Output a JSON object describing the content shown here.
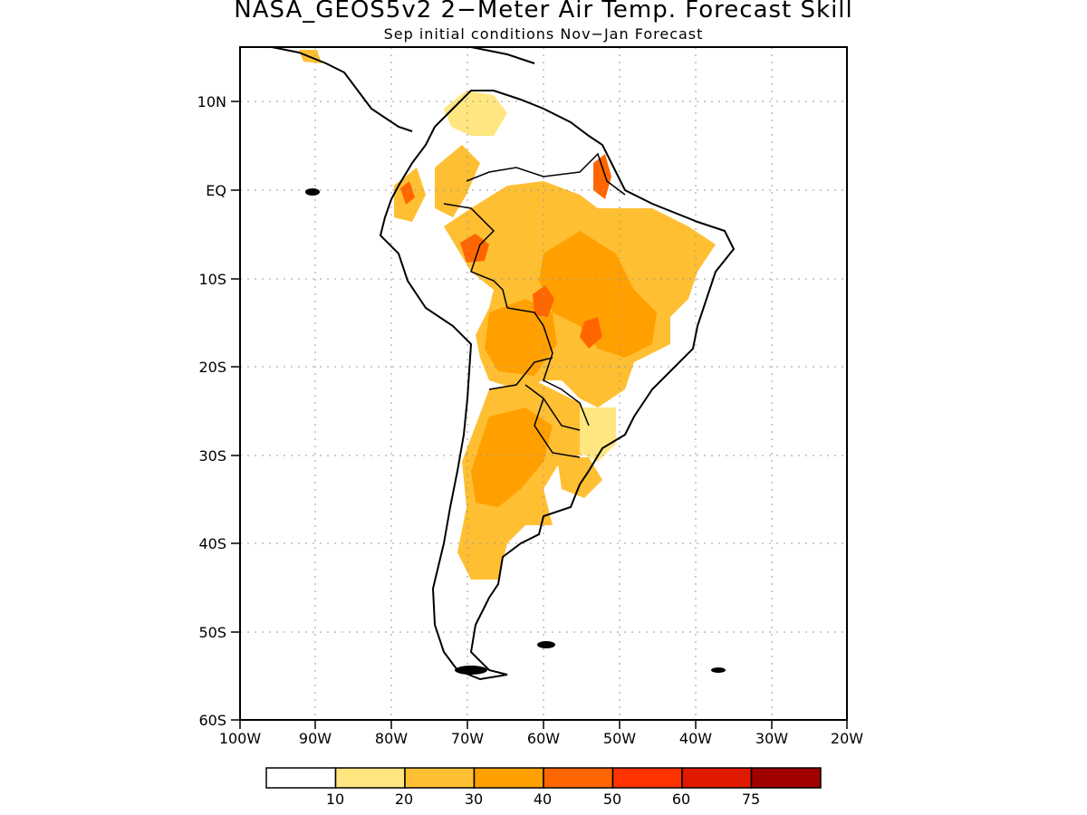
{
  "title": "NASA_GEOS5v2 2−Meter Air Temp. Forecast Skill",
  "subtitle": "Sep initial conditions  Nov−Jan Forecast",
  "map": {
    "lon_ticks": [
      "100W",
      "90W",
      "80W",
      "70W",
      "60W",
      "50W",
      "40W",
      "30W",
      "20W"
    ],
    "lat_ticks": [
      "10N",
      "EQ",
      "10S",
      "20S",
      "30S",
      "40S",
      "50S",
      "60S"
    ],
    "lon_range": [
      -100,
      -20
    ],
    "lat_range": [
      -60,
      15
    ],
    "grid": true
  },
  "legend": {
    "labels": [
      "10",
      "20",
      "30",
      "40",
      "50",
      "60",
      "75"
    ],
    "colors": [
      "#ffffff",
      "#ffe680",
      "#ffbf33",
      "#ffa000",
      "#ff6600",
      "#ff3300",
      "#e01a00",
      "#a00000"
    ]
  }
}
